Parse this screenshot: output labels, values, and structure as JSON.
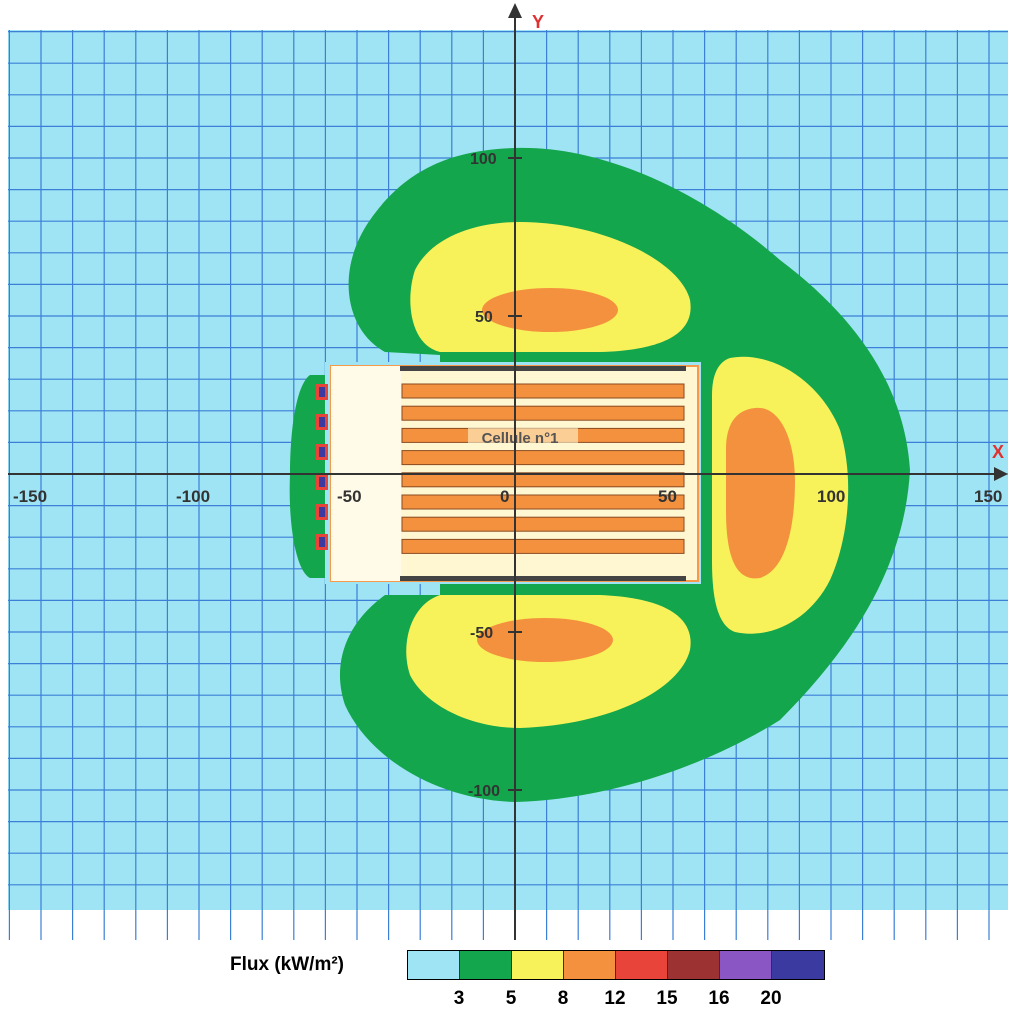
{
  "axes": {
    "x_label": "X",
    "y_label": "Y",
    "x_ticks": [
      "-150",
      "-100",
      "-50",
      "0",
      "50",
      "100",
      "150"
    ],
    "y_ticks": [
      "100",
      "50",
      "-50",
      "-100"
    ]
  },
  "building": {
    "label": "Cellule n°1"
  },
  "legend": {
    "title": "Flux (kW/m²)",
    "thresholds": [
      "3",
      "5",
      "8",
      "12",
      "15",
      "16",
      "20"
    ],
    "colors": [
      "#9fe4f5",
      "#14a64c",
      "#f7f25a",
      "#f4913e",
      "#e8443a",
      "#9c3232",
      "#8a56c4",
      "#3a3aa0"
    ]
  },
  "colors": {
    "background": "#9fe4f5",
    "grid": "#3b7fd6",
    "zone_3": "#14a64c",
    "zone_5": "#f7f25a",
    "zone_8": "#f4913e",
    "building_fill": "#fff6d2",
    "building_border": "#f49a4a",
    "rack_fill": "#f4913e",
    "rack_border": "#8a4a20",
    "wall": "#444444",
    "axis_label": "#e03030"
  }
}
